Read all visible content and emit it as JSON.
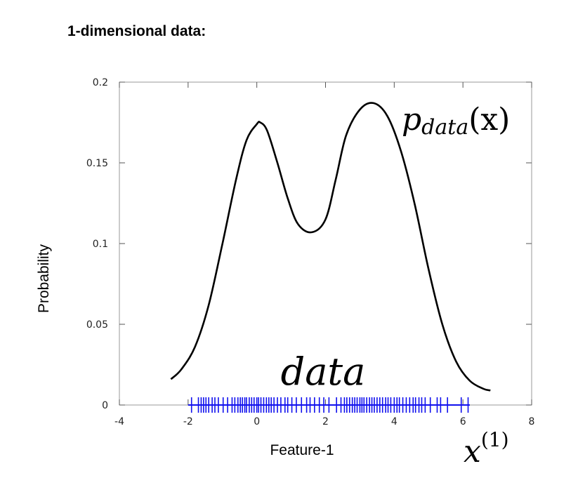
{
  "heading": "1-dimensional data:",
  "chart_data": {
    "type": "line",
    "xlabel": "Feature-1",
    "ylabel": "Probability",
    "xlim": [
      -4,
      8
    ],
    "ylim": [
      0,
      0.2
    ],
    "xticks": [
      "-4",
      "-2",
      "0",
      "2",
      "4",
      "6",
      "8"
    ],
    "xtick_values": [
      -4,
      -2,
      0,
      2,
      4,
      6,
      8
    ],
    "yticks": [
      "0",
      "0.05",
      "0.1",
      "0.15",
      "0.2"
    ],
    "ytick_values": [
      0,
      0.05,
      0.1,
      0.15,
      0.2
    ],
    "grid": false,
    "curve_color": "#000000",
    "rug_color": "#1010ee",
    "series": [
      {
        "x": [
          -2.5,
          -2.2,
          -1.8,
          -1.4,
          -1.0,
          -0.6,
          -0.3,
          0.0,
          0.1,
          0.3,
          0.6,
          0.9,
          1.2,
          1.6,
          2.0,
          2.3,
          2.6,
          3.0,
          3.4,
          3.8,
          4.2,
          4.6,
          5.0,
          5.4,
          5.8,
          6.2,
          6.6,
          6.8
        ],
        "y": [
          0.016,
          0.022,
          0.036,
          0.062,
          0.1,
          0.14,
          0.164,
          0.174,
          0.175,
          0.17,
          0.15,
          0.128,
          0.112,
          0.107,
          0.115,
          0.14,
          0.167,
          0.183,
          0.187,
          0.179,
          0.157,
          0.124,
          0.084,
          0.05,
          0.027,
          0.015,
          0.01,
          0.009
        ]
      }
    ],
    "rug_range": [
      -2.0,
      6.2
    ],
    "rug": [
      -1.9,
      -1.7,
      -1.62,
      -1.55,
      -1.48,
      -1.4,
      -1.3,
      -1.22,
      -1.12,
      -0.98,
      -0.85,
      -0.72,
      -0.64,
      -0.55,
      -0.48,
      -0.42,
      -0.35,
      -0.3,
      -0.22,
      -0.15,
      -0.08,
      0.0,
      0.05,
      0.12,
      0.2,
      0.28,
      0.35,
      0.42,
      0.5,
      0.6,
      0.7,
      0.82,
      0.9,
      1.02,
      1.15,
      1.3,
      1.45,
      1.55,
      1.68,
      1.82,
      1.95,
      2.1,
      2.32,
      2.45,
      2.55,
      2.62,
      2.7,
      2.78,
      2.85,
      2.92,
      3.0,
      3.06,
      3.12,
      3.2,
      3.28,
      3.35,
      3.42,
      3.5,
      3.58,
      3.66,
      3.75,
      3.82,
      3.9,
      4.0,
      4.08,
      4.15,
      4.25,
      4.35,
      4.45,
      4.55,
      4.62,
      4.72,
      4.8,
      4.9,
      5.05,
      5.25,
      5.35,
      5.55,
      5.95,
      6.15
    ],
    "annotations": {
      "curve_label": {
        "main": "p",
        "sub": "data",
        "arg": "(x)"
      },
      "rug_label": "data",
      "axis_label": {
        "main": "x",
        "sup": "(1)"
      }
    }
  }
}
